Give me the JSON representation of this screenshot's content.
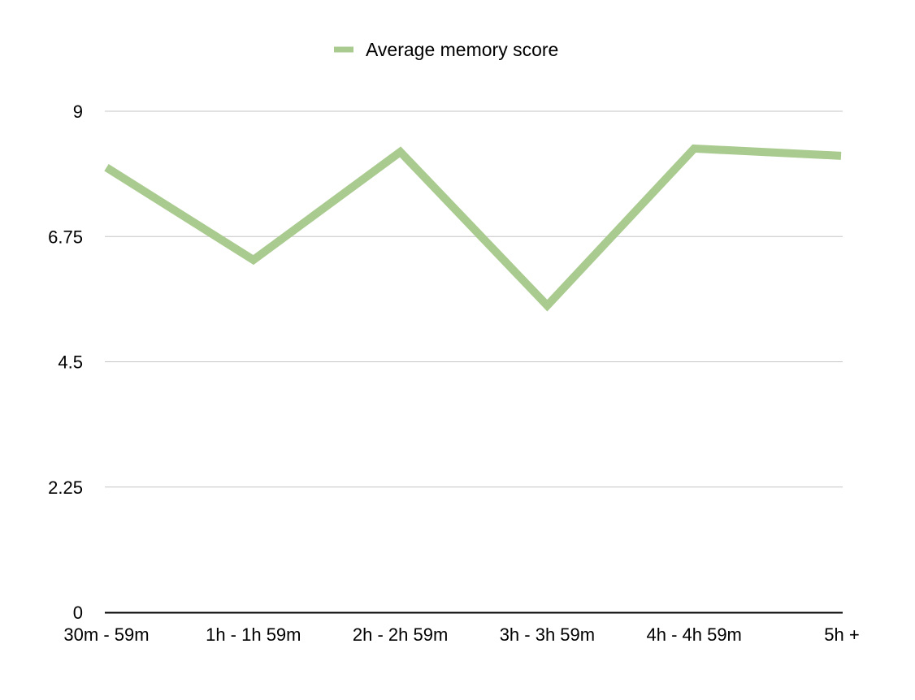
{
  "chart_data": {
    "type": "line",
    "categories": [
      "30m - 59m",
      "1h - 1h 59m",
      "2h - 2h 59m",
      "3h - 3h 59m",
      "4h - 4h 59m",
      "5h +"
    ],
    "series": [
      {
        "name": "Average memory score",
        "values": [
          7.99,
          6.33,
          8.27,
          5.51,
          8.33,
          8.2
        ],
        "color": "#aacb8f"
      }
    ],
    "yticks": [
      "0",
      "2.25",
      "4.5",
      "6.75",
      "9"
    ],
    "ylim": [
      0,
      9
    ],
    "grid": true,
    "legend_position": "top-center",
    "colors": {
      "line": "#aacb8f",
      "grid": "#c6c6c6",
      "axis": "#000000"
    }
  }
}
